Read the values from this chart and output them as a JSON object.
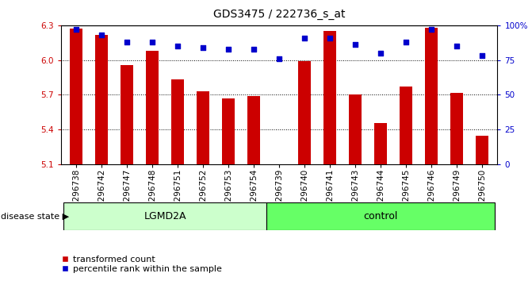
{
  "title": "GDS3475 / 222736_s_at",
  "samples": [
    "GSM296738",
    "GSM296742",
    "GSM296747",
    "GSM296748",
    "GSM296751",
    "GSM296752",
    "GSM296753",
    "GSM296754",
    "GSM296739",
    "GSM296740",
    "GSM296741",
    "GSM296743",
    "GSM296744",
    "GSM296745",
    "GSM296746",
    "GSM296749",
    "GSM296750"
  ],
  "transformed_count": [
    6.27,
    6.22,
    5.96,
    6.08,
    5.83,
    5.73,
    5.67,
    5.69,
    5.1,
    5.99,
    6.25,
    5.7,
    5.46,
    5.77,
    6.28,
    5.72,
    5.35
  ],
  "percentile_rank": [
    97,
    93,
    88,
    88,
    85,
    84,
    83,
    83,
    76,
    91,
    91,
    86,
    80,
    88,
    97,
    85,
    78
  ],
  "groups": [
    "LGMD2A",
    "LGMD2A",
    "LGMD2A",
    "LGMD2A",
    "LGMD2A",
    "LGMD2A",
    "LGMD2A",
    "LGMD2A",
    "control",
    "control",
    "control",
    "control",
    "control",
    "control",
    "control",
    "control",
    "control"
  ],
  "ylim_left": [
    5.1,
    6.3
  ],
  "ylim_right": [
    0,
    100
  ],
  "yticks_left": [
    5.1,
    5.4,
    5.7,
    6.0,
    6.3
  ],
  "yticks_right": [
    0,
    25,
    50,
    75,
    100
  ],
  "ytick_labels_right": [
    "0",
    "25",
    "50",
    "75",
    "100%"
  ],
  "bar_color": "#cc0000",
  "dot_color": "#0000cc",
  "bar_width": 0.5,
  "baseline": 5.1,
  "lgmd2a_color": "#ccffcc",
  "control_color": "#66ff66",
  "legend_bar_label": "transformed count",
  "legend_dot_label": "percentile rank within the sample",
  "disease_state_label": "disease state",
  "title_fontsize": 10,
  "tick_fontsize": 7.5,
  "label_fontsize": 8,
  "group_fontsize": 9
}
